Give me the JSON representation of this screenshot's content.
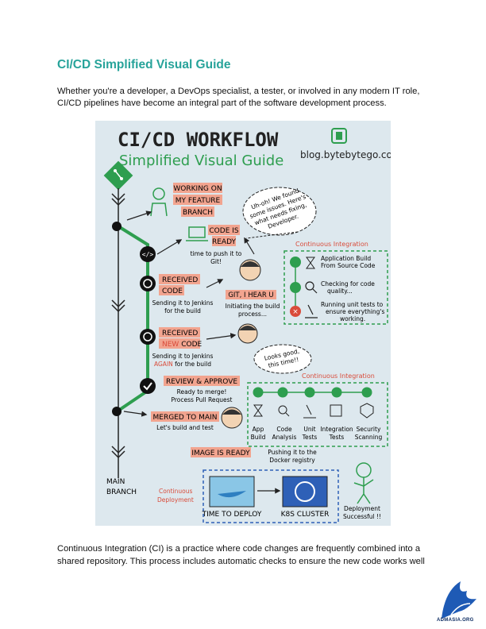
{
  "doc": {
    "title": "CI/CD Simplified Visual Guide",
    "intro": "Whether you're a developer, a DevOps specialist, a tester, or involved in any modern IT role, CI/CD pipelines have become an integral part of the software development process.",
    "outro": "Continuous Integration (CI) is a practice where code changes are frequently combined into a shared repository. This process includes automatic checks to ensure the new code works well",
    "logo_text": "ADMASIA.ORG"
  },
  "infographic": {
    "heading": "CI/CD WORKFLOW",
    "subheading": "Simplified Visual Guide",
    "site": "blog.bytebytego.com",
    "steps": {
      "feature_1": "WORKING ON",
      "feature_2": "MY FEATURE",
      "feature_3": "BRANCH",
      "ready_1": "CODE IS",
      "ready_2": "READY",
      "push_1": "time to push it to",
      "push_2": "Git!",
      "received_1": "RECEIVED",
      "received_2": "CODE",
      "sending_1": "Sending it to Jenkins",
      "sending_2": "for the build",
      "git_hear": "GIT, I HEAR U",
      "init_1": "Initiating the build",
      "init_2": "process...",
      "received_new_1": "RECEIVED",
      "received_new_2a": "NEW",
      "received_new_2b": "CODE",
      "again_1": "Sending it to Jenkins",
      "again_2a": "AGAIN",
      "again_2b": "for the build",
      "review": "REVIEW & APPROVE",
      "review_1": "Ready to merge!",
      "review_2": "Process Pull Request",
      "merged": "MERGED TO MAIN",
      "merged_sub": "Let's build and test",
      "image_ready": "IMAGE IS READY",
      "docker_1": "Pushing it to the",
      "docker_2": "Docker registry",
      "main_1": "MAIN",
      "main_2": "BRANCH",
      "cd_1": "Continuous",
      "cd_2": "Deployment",
      "deploy": "TIME TO DEPLOY",
      "k8s": "K8S CLUSTER",
      "success_1": "Deployment",
      "success_2": "Successful !!"
    },
    "cloud1": [
      "Uh-oh! We found",
      "some issues. Here's",
      "what needs fixing,",
      "Developer."
    ],
    "cloud2": [
      "Looks good,",
      "this time!!"
    ],
    "ci_label": "Continuous Integration",
    "ci1": {
      "build_1": "Application Build",
      "build_2": "From Source Code",
      "quality_1": "Checking for code",
      "quality_2": "quality...",
      "tests_1": "Running unit tests to",
      "tests_2": "ensure everything's",
      "tests_3": "working."
    },
    "ci2": [
      {
        "l1": "App",
        "l2": "Build"
      },
      {
        "l1": "Code",
        "l2": "Analysis"
      },
      {
        "l1": "Unit",
        "l2": "Tests"
      },
      {
        "l1": "Integration",
        "l2": "Tests"
      },
      {
        "l1": "Security",
        "l2": "Scanning"
      }
    ],
    "colors": {
      "green": "#2e9e4f",
      "label": "#f2a48f",
      "red": "#d94b3a",
      "bg": "#dde8ee"
    }
  }
}
